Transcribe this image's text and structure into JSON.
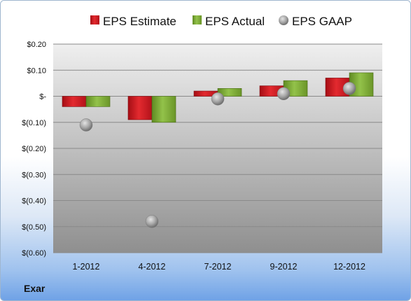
{
  "company": "Exar",
  "colors": {
    "estimate": "#c8141c",
    "actual": "#78a531",
    "gaap": "#9a9a9a",
    "plot_top": "#efefef",
    "plot_bottom": "#8f8f8f"
  },
  "chart_data": {
    "type": "bar",
    "categories": [
      "1-2012",
      "4-2012",
      "7-2012",
      "9-2012",
      "12-2012"
    ],
    "series": [
      {
        "name": "EPS Estimate",
        "kind": "bar",
        "values": [
          -0.04,
          -0.09,
          0.02,
          0.04,
          0.07
        ]
      },
      {
        "name": "EPS Actual",
        "kind": "bar",
        "values": [
          -0.04,
          -0.1,
          0.03,
          0.06,
          0.09
        ]
      },
      {
        "name": "EPS GAAP",
        "kind": "scatter",
        "values": [
          -0.11,
          -0.48,
          -0.01,
          0.01,
          0.03
        ]
      }
    ],
    "y_ticks": [
      0.2,
      0.1,
      0.0,
      -0.1,
      -0.2,
      -0.3,
      -0.4,
      -0.5,
      -0.6
    ],
    "y_tick_labels": [
      "$0.20",
      "$0.10",
      "$-",
      "$(0.10)",
      "$(0.20)",
      "$(0.30)",
      "$(0.40)",
      "$(0.50)",
      "$(0.60)"
    ],
    "ylim": [
      -0.6,
      0.2
    ],
    "grid": true,
    "legend_position": "top"
  }
}
